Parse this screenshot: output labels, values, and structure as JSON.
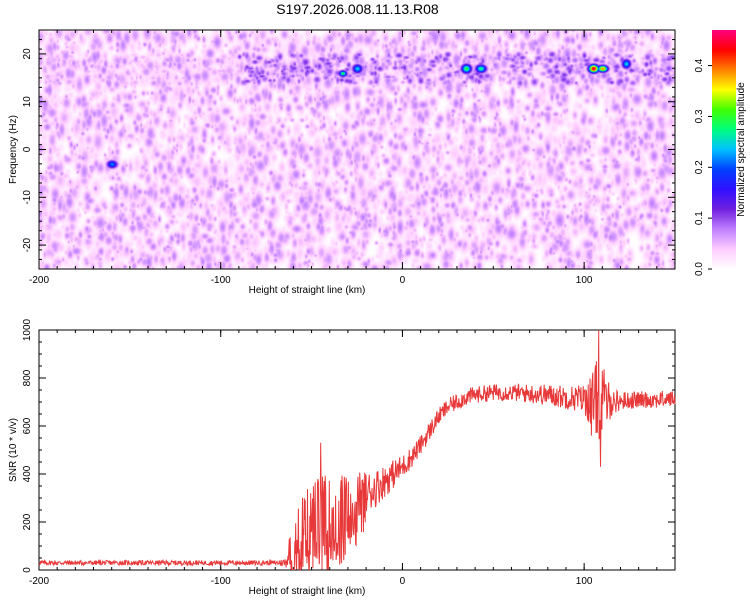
{
  "title": "S197.2026.008.11.13.R08",
  "chart_data": [
    {
      "type": "heatmap",
      "name": "spectrogram",
      "xlabel": "Height of straight line (km)",
      "ylabel": "Frequency (Hz)",
      "xlim": [
        -200,
        150
      ],
      "ylim": [
        -25,
        25
      ],
      "xticks": [
        -200,
        -100,
        0,
        100
      ],
      "yticks": [
        -20,
        -10,
        0,
        10,
        20
      ],
      "colorbar": {
        "label": "Normalized spectral amplitude",
        "range": [
          0,
          0.47
        ],
        "ticks": [
          0.0,
          0.1,
          0.2,
          0.3,
          0.4
        ],
        "colormap": [
          "#ffffff",
          "#ffccff",
          "#c080ff",
          "#7020e0",
          "#3010ff",
          "#0040ff",
          "#00c0ff",
          "#00ff80",
          "#40ff00",
          "#ffff00",
          "#ff8000",
          "#ff0000",
          "#ff0080"
        ]
      },
      "background_level": 0.05,
      "signal_band_hz": [
        14,
        20
      ],
      "hot_spots": [
        {
          "x": -33,
          "y": 16,
          "value": 0.3
        },
        {
          "x": -25,
          "y": 17,
          "value": 0.25
        },
        {
          "x": 35,
          "y": 17,
          "value": 0.3
        },
        {
          "x": 43,
          "y": 17,
          "value": 0.28
        },
        {
          "x": 105,
          "y": 17,
          "value": 0.47
        },
        {
          "x": 110,
          "y": 17,
          "value": 0.4
        },
        {
          "x": 123,
          "y": 18,
          "value": 0.25
        },
        {
          "x": -160,
          "y": -3,
          "value": 0.22
        }
      ]
    },
    {
      "type": "line",
      "name": "snr",
      "xlabel": "Height of straight line (km)",
      "ylabel": "SNR (10 * v/v)",
      "xlim": [
        -200,
        150
      ],
      "ylim": [
        0,
        1000
      ],
      "xticks": [
        -200,
        -100,
        0,
        100
      ],
      "yticks": [
        0,
        200,
        400,
        600,
        800,
        1000
      ],
      "color": "#e8393a",
      "x": [
        -200,
        -150,
        -100,
        -70,
        -64,
        -60,
        -55,
        -50,
        -45,
        -40,
        -35,
        -30,
        -25,
        -20,
        -15,
        -10,
        -5,
        0,
        5,
        10,
        15,
        20,
        25,
        30,
        35,
        40,
        50,
        60,
        70,
        80,
        90,
        100,
        105,
        108,
        110,
        115,
        120,
        130,
        140,
        150
      ],
      "y": [
        30,
        30,
        30,
        30,
        30,
        150,
        180,
        200,
        220,
        240,
        260,
        280,
        300,
        320,
        340,
        370,
        400,
        430,
        470,
        520,
        580,
        640,
        680,
        700,
        720,
        730,
        740,
        740,
        735,
        730,
        720,
        715,
        700,
        720,
        700,
        700,
        705,
        710,
        710,
        715
      ],
      "noise_amplitude": [
        10,
        10,
        10,
        10,
        20,
        120,
        140,
        160,
        180,
        160,
        150,
        130,
        110,
        90,
        80,
        70,
        60,
        50,
        45,
        40,
        40,
        35,
        35,
        35,
        35,
        35,
        35,
        35,
        40,
        45,
        50,
        60,
        140,
        180,
        160,
        60,
        40,
        35,
        35,
        35
      ],
      "spikes": [
        {
          "x": -45,
          "y": 530
        },
        {
          "x": 108,
          "y": 1000
        },
        {
          "x": 109,
          "y": 430
        },
        {
          "x": 104,
          "y": 560
        }
      ]
    }
  ]
}
